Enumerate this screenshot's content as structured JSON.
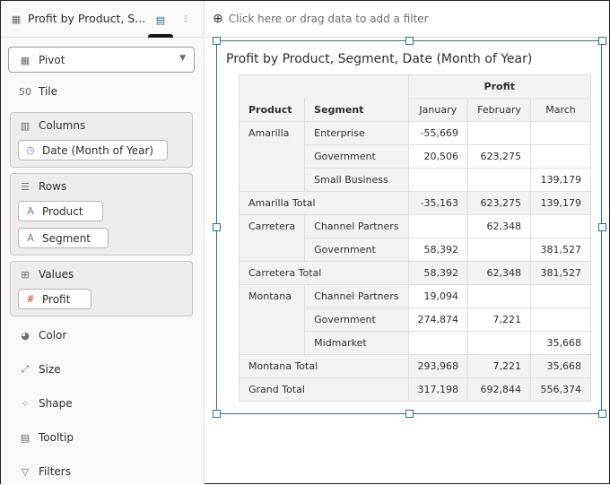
{
  "tab": {
    "title": "Profit by Product, S..."
  },
  "viz_type": "Pivot",
  "grammar": {
    "tile": "Tile",
    "columns": {
      "label": "Columns",
      "items": [
        "Date (Month of Year)"
      ]
    },
    "rows": {
      "label": "Rows",
      "items": [
        "Product",
        "Segment"
      ]
    },
    "values": {
      "label": "Values",
      "items": [
        "Profit"
      ]
    },
    "color": "Color",
    "size": "Size",
    "shape": "Shape",
    "tooltip": "Tooltip",
    "filters": "Filters"
  },
  "filter_bar": {
    "placeholder": "Click here or drag data to add a filter"
  },
  "pivot": {
    "title": "Profit by Product, Segment, Date (Month of Year)",
    "measure": "Profit",
    "headers": {
      "product": "Product",
      "segment": "Segment",
      "months": [
        "January",
        "February",
        "March"
      ]
    },
    "groups": [
      {
        "product": "Amarilla",
        "rows": [
          {
            "segment": "Enterprise",
            "values": [
              "-55,669",
              "",
              ""
            ]
          },
          {
            "segment": "Government",
            "values": [
              "20,506",
              "623,275",
              ""
            ]
          },
          {
            "segment": "Small Business",
            "values": [
              "",
              "",
              "139,179"
            ]
          }
        ],
        "total": {
          "label": "Amarilla Total",
          "values": [
            "-35,163",
            "623,275",
            "139,179"
          ]
        }
      },
      {
        "product": "Carretera",
        "rows": [
          {
            "segment": "Channel Partners",
            "values": [
              "",
              "62,348",
              ""
            ]
          },
          {
            "segment": "Government",
            "values": [
              "58,392",
              "",
              "381,527"
            ]
          }
        ],
        "total": {
          "label": "Carretera Total",
          "values": [
            "58,392",
            "62,348",
            "381,527"
          ]
        }
      },
      {
        "product": "Montana",
        "rows": [
          {
            "segment": "Channel Partners",
            "values": [
              "19,094",
              "",
              ""
            ]
          },
          {
            "segment": "Government",
            "values": [
              "274,874",
              "7,221",
              ""
            ]
          },
          {
            "segment": "Midmarket",
            "values": [
              "",
              "",
              "35,668"
            ]
          }
        ],
        "total": {
          "label": "Montana Total",
          "values": [
            "293,968",
            "7,221",
            "35,668"
          ]
        }
      }
    ],
    "grand_total": {
      "label": "Grand Total",
      "values": [
        "317,198",
        "692,844",
        "556,374"
      ]
    }
  },
  "colors": {
    "accent": "#2a6f97",
    "measure_icon": "#c74634",
    "attribute_icon": "#5b7fa3"
  }
}
